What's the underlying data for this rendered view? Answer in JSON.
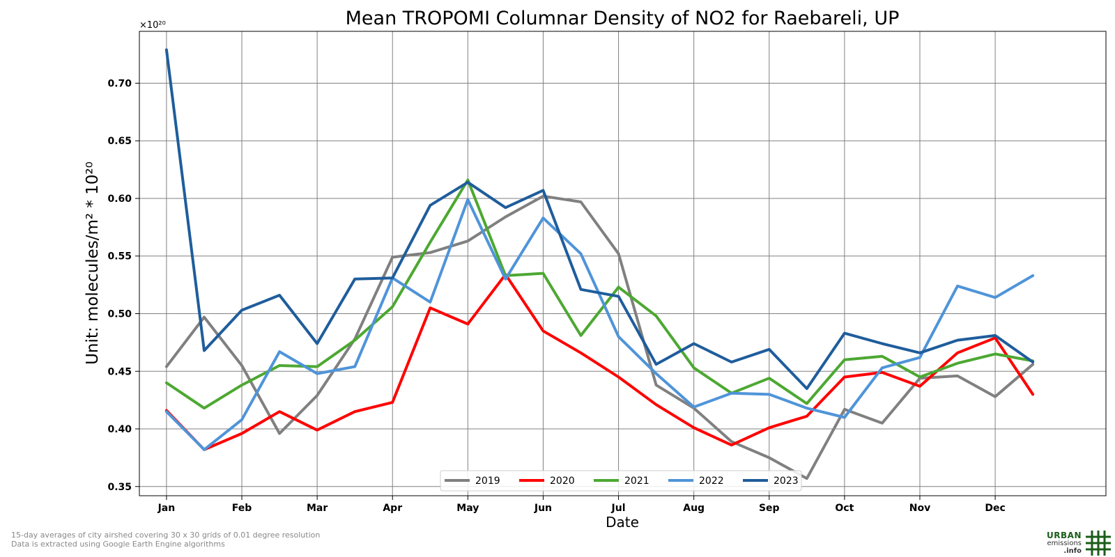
{
  "chart_data": {
    "type": "line",
    "title": "Mean TROPOMI Columnar Density of NO2 for Raebareli, UP",
    "xlabel": "Date",
    "ylabel": "Unit: molecules/m² * 10²⁰",
    "offset_label": "×10²⁰",
    "x_categories": [
      "Jan",
      "Feb",
      "Mar",
      "Apr",
      "May",
      "Jun",
      "Jul",
      "Aug",
      "Sep",
      "Oct",
      "Nov",
      "Dec"
    ],
    "ylim": [
      0.342,
      0.745
    ],
    "y_ticks": [
      "0.35",
      "0.40",
      "0.45",
      "0.50",
      "0.55",
      "0.60",
      "0.65",
      "0.70"
    ],
    "y_tick_values": [
      0.35,
      0.4,
      0.45,
      0.5,
      0.55,
      0.6,
      0.65,
      0.7
    ],
    "grid": true,
    "legend_position": "bottom-center",
    "x": [
      1,
      1.5,
      2,
      2.5,
      3,
      3.5,
      4,
      4.5,
      5,
      5.5,
      6,
      6.5,
      7,
      7.5,
      8,
      8.5,
      9,
      9.5,
      10,
      10.5,
      11,
      11.5,
      12,
      12.5
    ],
    "series": [
      {
        "name": "2019",
        "color": "#808080",
        "values": [
          0.454,
          0.497,
          0.455,
          0.396,
          0.429,
          0.478,
          0.549,
          0.553,
          0.563,
          0.584,
          0.602,
          0.597,
          0.552,
          0.438,
          0.418,
          0.389,
          0.375,
          0.357,
          0.417,
          0.405,
          0.444,
          0.446,
          0.428,
          0.456
        ]
      },
      {
        "name": "2020",
        "color": "#ff0000",
        "values": [
          0.416,
          0.382,
          0.396,
          0.415,
          0.399,
          0.415,
          0.423,
          0.505,
          0.491,
          0.534,
          0.485,
          0.466,
          0.445,
          0.421,
          0.401,
          0.386,
          0.401,
          0.411,
          0.445,
          0.449,
          0.437,
          0.466,
          0.479,
          0.43
        ]
      },
      {
        "name": "2021",
        "color": "#4da832",
        "values": [
          0.44,
          0.418,
          0.438,
          0.455,
          0.454,
          0.477,
          0.506,
          0.562,
          0.616,
          0.533,
          0.535,
          0.481,
          0.523,
          0.498,
          0.453,
          0.431,
          0.444,
          0.422,
          0.46,
          0.463,
          0.445,
          0.457,
          0.465,
          0.459
        ]
      },
      {
        "name": "2022",
        "color": "#4f94d9",
        "values": [
          0.415,
          0.382,
          0.408,
          0.467,
          0.448,
          0.454,
          0.531,
          0.51,
          0.599,
          0.53,
          0.583,
          0.552,
          0.48,
          0.448,
          0.419,
          0.431,
          0.43,
          0.418,
          0.41,
          0.453,
          0.462,
          0.524,
          0.514,
          0.533
        ]
      },
      {
        "name": "2023",
        "color": "#1f5d9c",
        "values": [
          0.729,
          0.468,
          0.503,
          0.516,
          0.474,
          0.53,
          0.531,
          0.594,
          0.614,
          0.592,
          0.607,
          0.521,
          0.515,
          0.456,
          0.474,
          0.458,
          0.469,
          0.435,
          0.483,
          0.474,
          0.466,
          0.477,
          0.481,
          0.458
        ]
      }
    ]
  },
  "footnote": {
    "line1": "15-day averages of city airshed covering 30 x 30 grids of 0.01 degree resolution",
    "line2": "Data is extracted using Google Earth Engine algorithms"
  },
  "logo": {
    "word1": "URBAN",
    "word2": "emissions",
    "word3": ".info",
    "color": "#1a5c1a"
  }
}
